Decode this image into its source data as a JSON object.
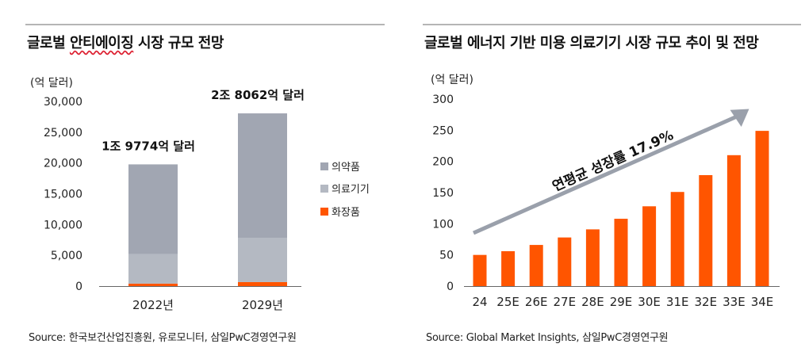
{
  "left": {
    "title_part1": "글로벌 ",
    "title_wavy": "안티에이징",
    "title_part2": " 시장 규모 전망",
    "unit": "(억 달러)",
    "source": "Source: 한국보건산업진흥원, 유로모니터, 삼일PwC경영연구원"
  },
  "right": {
    "title": "글로벌 에너지 기반 미용 의료기기 시장 규모 추이 및 전망",
    "unit": "(억 달러)",
    "source": "Source: Global Market Insights, 삼일PwC경영연구원"
  },
  "chart_data": [
    {
      "type": "bar",
      "stacked": true,
      "categories": [
        "2022년",
        "2029년"
      ],
      "series": [
        {
          "name": "화장품",
          "color": "#ff5500",
          "values": [
            400,
            650
          ]
        },
        {
          "name": "의료기기",
          "color": "#b4b9c2",
          "values": [
            4800,
            7200
          ]
        },
        {
          "name": "의약품",
          "color": "#a1a6b2",
          "values": [
            14574,
            20212
          ]
        }
      ],
      "totals_labels": [
        "1조 9774억 달러",
        "2조 8062억 달러"
      ],
      "ylim": [
        0,
        30000
      ],
      "yticks": [
        0,
        5000,
        10000,
        15000,
        20000,
        25000,
        30000
      ],
      "ytick_labels": [
        "0",
        "5,000",
        "10,000",
        "15,000",
        "20,000",
        "25,000",
        "30,000"
      ],
      "legend": [
        "의약품",
        "의료기기",
        "화장품"
      ],
      "legend_position": "right",
      "grid": false
    },
    {
      "type": "bar",
      "categories": [
        "24",
        "25E",
        "26E",
        "27E",
        "28E",
        "29E",
        "30E",
        "31E",
        "32E",
        "33E",
        "34E"
      ],
      "values": [
        50,
        56,
        66,
        78,
        91,
        108,
        128,
        151,
        178,
        210,
        249
      ],
      "color": "#ff5500",
      "ylim": [
        0,
        300
      ],
      "yticks": [
        0,
        50,
        100,
        150,
        200,
        250,
        300
      ],
      "annotation": "연평균 성장률 17.9%",
      "grid": false
    }
  ]
}
